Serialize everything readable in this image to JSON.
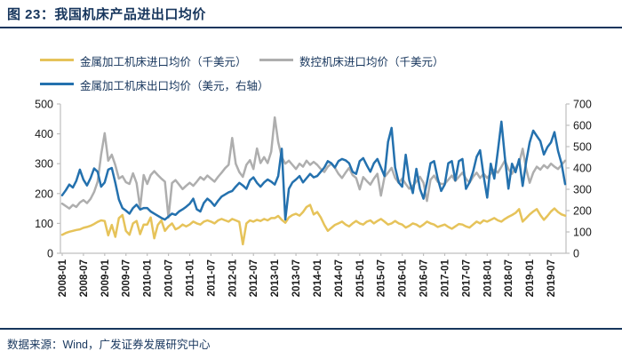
{
  "title": "图 23：我国机床产品进出口均价",
  "footer": "数据来源：Wind，广发证券发展研究中心",
  "colors": {
    "navy": "#17365D",
    "yellow_line": "#E6C35A",
    "gray_line": "#AEAEAE",
    "blue_line": "#2471AE",
    "axis_gray": "#BFBFBF"
  },
  "legend": {
    "items": [
      {
        "label": "金属加工机床进口均价（千美元）",
        "color": "#E6C35A"
      },
      {
        "label": "数控机床进口均价（千美元）",
        "color": "#AEAEAE"
      },
      {
        "label": "金属加工机床出口均价（美元，右轴）",
        "color": "#2471AE"
      }
    ]
  },
  "chart_data": {
    "type": "line",
    "title": "我国机床产品进出口均价",
    "grid": false,
    "legend_position": "top",
    "left_axis": {
      "min": 0,
      "max": 500,
      "ticks": [
        0,
        100,
        200,
        300,
        400,
        500
      ]
    },
    "right_axis": {
      "min": 0,
      "max": 700,
      "ticks": [
        0,
        100,
        200,
        300,
        400,
        500,
        600,
        700
      ]
    },
    "x_tick_labels": [
      "2008-01",
      "2008-07",
      "2009-01",
      "2009-07",
      "2010-01",
      "2010-07",
      "2011-01",
      "2011-07",
      "2012-01",
      "2012-07",
      "2013-01",
      "2013-07",
      "2014-01",
      "2014-07",
      "2015-01",
      "2015-07",
      "2016-01",
      "2016-07",
      "2017-01",
      "2017-07",
      "2018-01",
      "2018-07",
      "2019-01",
      "2019-07"
    ],
    "x": [
      "2008-01",
      "2008-02",
      "2008-03",
      "2008-04",
      "2008-05",
      "2008-06",
      "2008-07",
      "2008-08",
      "2008-09",
      "2008-10",
      "2008-11",
      "2008-12",
      "2009-01",
      "2009-02",
      "2009-03",
      "2009-04",
      "2009-05",
      "2009-06",
      "2009-07",
      "2009-08",
      "2009-09",
      "2009-10",
      "2009-11",
      "2009-12",
      "2010-01",
      "2010-02",
      "2010-03",
      "2010-04",
      "2010-05",
      "2010-06",
      "2010-07",
      "2010-08",
      "2010-09",
      "2010-10",
      "2010-11",
      "2010-12",
      "2011-01",
      "2011-02",
      "2011-03",
      "2011-04",
      "2011-05",
      "2011-06",
      "2011-07",
      "2011-08",
      "2011-09",
      "2011-10",
      "2011-11",
      "2011-12",
      "2012-01",
      "2012-02",
      "2012-03",
      "2012-04",
      "2012-05",
      "2012-06",
      "2012-07",
      "2012-08",
      "2012-09",
      "2012-10",
      "2012-11",
      "2012-12",
      "2013-01",
      "2013-02",
      "2013-03",
      "2013-04",
      "2013-05",
      "2013-06",
      "2013-07",
      "2013-08",
      "2013-09",
      "2013-10",
      "2013-11",
      "2013-12",
      "2014-01",
      "2014-02",
      "2014-03",
      "2014-04",
      "2014-05",
      "2014-06",
      "2014-07",
      "2014-08",
      "2014-09",
      "2014-10",
      "2014-11",
      "2014-12",
      "2015-01",
      "2015-02",
      "2015-03",
      "2015-04",
      "2015-05",
      "2015-06",
      "2015-07",
      "2015-08",
      "2015-09",
      "2015-10",
      "2015-11",
      "2015-12",
      "2016-01",
      "2016-02",
      "2016-03",
      "2016-04",
      "2016-05",
      "2016-06",
      "2016-07",
      "2016-08",
      "2016-09",
      "2016-10",
      "2016-11",
      "2016-12",
      "2017-01",
      "2017-02",
      "2017-03",
      "2017-04",
      "2017-05",
      "2017-06",
      "2017-07",
      "2017-08",
      "2017-09",
      "2017-10",
      "2017-11",
      "2017-12",
      "2018-01",
      "2018-02",
      "2018-03",
      "2018-04",
      "2018-05",
      "2018-06",
      "2018-07",
      "2018-08",
      "2018-09",
      "2018-10",
      "2018-11",
      "2018-12",
      "2019-01",
      "2019-02",
      "2019-03",
      "2019-04",
      "2019-05",
      "2019-06",
      "2019-07",
      "2019-08",
      "2019-09",
      "2019-10",
      "2019-11"
    ],
    "series": [
      {
        "key": "import-cnc",
        "name": "数控机床进口均价（千美元）",
        "axis": "left",
        "color": "#AEAEAE",
        "values": [
          166,
          158,
          150,
          162,
          155,
          170,
          178,
          168,
          182,
          205,
          240,
          330,
          402,
          310,
          330,
          295,
          250,
          258,
          238,
          232,
          268,
          235,
          152,
          262,
          232,
          262,
          275,
          262,
          250,
          240,
          120,
          235,
          245,
          230,
          215,
          226,
          236,
          226,
          240,
          255,
          246,
          260,
          250,
          240,
          256,
          270,
          285,
          296,
          386,
          300,
          272,
          256,
          296,
          312,
          282,
          351,
          302,
          322,
          302,
          340,
          455,
          372,
          322,
          300,
          310,
          296,
          282,
          300,
          290,
          310,
          296,
          306,
          296,
          282,
          272,
          290,
          300,
          286,
          266,
          252,
          270,
          286,
          262,
          252,
          214,
          255,
          242,
          230,
          250,
          266,
          193,
          255,
          270,
          286,
          252,
          236,
          250,
          232,
          216,
          226,
          240,
          256,
          236,
          175,
          246,
          260,
          240,
          232,
          232,
          246,
          260,
          242,
          256,
          270,
          250,
          236,
          256,
          270,
          252,
          266,
          252,
          266,
          280,
          270,
          290,
          310,
          282,
          266,
          286,
          302,
          350,
          282,
          236,
          270,
          290,
          280,
          295,
          285,
          300,
          290,
          282,
          296,
          310
        ]
      },
      {
        "key": "import-metal",
        "name": "金属加工机床进口均价（千美元）",
        "axis": "left",
        "color": "#E6C35A",
        "values": [
          62,
          68,
          72,
          75,
          78,
          80,
          85,
          88,
          92,
          98,
          105,
          110,
          108,
          60,
          95,
          55,
          118,
          128,
          75,
          62,
          100,
          108,
          64,
          96,
          96,
          120,
          50,
          95,
          110,
          75,
          90,
          100,
          80,
          86,
          96,
          90,
          96,
          106,
          100,
          96,
          106,
          110,
          106,
          100,
          110,
          115,
          110,
          106,
          115,
          110,
          105,
          30,
          100,
          110,
          106,
          112,
          108,
          115,
          110,
          118,
          118,
          125,
          112,
          102,
          120,
          128,
          132,
          126,
          138,
          155,
          162,
          130,
          138,
          120,
          95,
          75,
          85,
          95,
          100,
          106,
          96,
          90,
          100,
          108,
          100,
          96,
          106,
          110,
          100,
          108,
          115,
          106,
          96,
          100,
          108,
          100,
          96,
          86,
          92,
          100,
          96,
          88,
          96,
          106,
          100,
          96,
          88,
          92,
          96,
          88,
          82,
          90,
          98,
          96,
          90,
          86,
          96,
          106,
          100,
          110,
          106,
          112,
          118,
          110,
          106,
          115,
          122,
          128,
          135,
          148,
          106,
          118,
          130,
          140,
          148,
          128,
          112,
          125,
          140,
          150,
          138,
          130,
          126
        ]
      },
      {
        "key": "export-metal",
        "name": "金属加工机床出口均价（美元，右轴）",
        "axis": "right",
        "color": "#2471AE",
        "values": [
          272,
          295,
          322,
          308,
          340,
          392,
          345,
          318,
          352,
          398,
          382,
          312,
          332,
          392,
          400,
          330,
          252,
          212,
          200,
          186,
          212,
          228,
          205,
          212,
          212,
          196,
          186,
          176,
          166,
          158,
          172,
          186,
          180,
          196,
          206,
          218,
          232,
          256,
          206,
          196,
          236,
          256,
          242,
          222,
          246,
          266,
          276,
          286,
          292,
          312,
          330,
          318,
          302,
          342,
          356,
          330,
          312,
          332,
          346,
          336,
          322,
          362,
          490,
          158,
          302,
          332,
          346,
          362,
          332,
          352,
          372,
          356,
          362,
          382,
          402,
          432,
          422,
          402,
          432,
          442,
          436,
          422,
          382,
          372,
          432,
          446,
          412,
          382,
          422,
          442,
          402,
          362,
          522,
          588,
          402,
          332,
          312,
          462,
          342,
          282,
          396,
          302,
          256,
          332,
          422,
          432,
          352,
          292,
          322,
          422,
          432,
          342,
          432,
          442,
          302,
          332,
          382,
          452,
          483,
          362,
          261,
          420,
          350,
          480,
          617,
          450,
          303,
          420,
          380,
          441,
          316,
          430,
          520,
          575,
          550,
          526,
          463,
          498,
          520,
          568,
          480,
          420,
          324
        ]
      }
    ]
  }
}
